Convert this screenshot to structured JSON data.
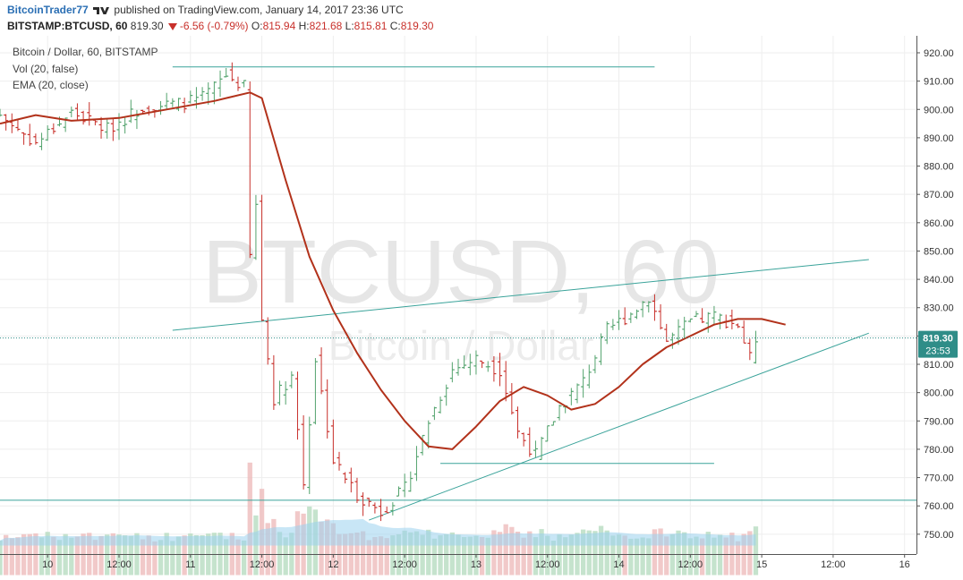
{
  "header": {
    "author": "BitcoinTrader77",
    "published_text": "published on TradingView.com, January 14, 2017 23:36 UTC",
    "symbol": "BITSTAMP:BTCUSD, 60",
    "last": "819.30",
    "change": "-6.56 (-0.79%)",
    "o_label": "O:",
    "o": "815.94",
    "h_label": "H:",
    "h": "821.68",
    "l_label": "L:",
    "l": "815.81",
    "c_label": "C:",
    "c": "819.30"
  },
  "legend": {
    "title": "Bitcoin / Dollar, 60, BITSTAMP",
    "vol": "Vol (20, false)",
    "ema": "EMA (20, close)"
  },
  "watermark": {
    "line1": "BTCUSD, 60",
    "line2": "Bitcoin / Dollar"
  },
  "price_label": {
    "value": "819.30",
    "countdown": "23:53"
  },
  "colors": {
    "up": "#53a36d",
    "down": "#c8302b",
    "ema": "#b2321b",
    "trend": "#3aa39a",
    "vol_up": "#b6dcc0",
    "vol_down": "#eebcbc",
    "vol_ma": "#9bd1ef",
    "price_tag": "#2f8d88",
    "header_blue": "#2b6fb4"
  },
  "chart_data": {
    "type": "candlestick",
    "title": "Bitcoin / Dollar, 60, BITSTAMP",
    "ylim": [
      743,
      926
    ],
    "yticks": [
      750,
      760,
      770,
      780,
      790,
      800,
      810,
      820,
      830,
      840,
      850,
      860,
      870,
      880,
      890,
      900,
      910,
      920
    ],
    "y_axis_side": "right",
    "x_range": [
      "2017-01-09T16:00",
      "2017-01-16T02:00"
    ],
    "x_tick_labels": [
      {
        "t": "2017-01-10T00:00",
        "label": "10"
      },
      {
        "t": "2017-01-10T12:00",
        "label": "12:00"
      },
      {
        "t": "2017-01-11T00:00",
        "label": "11"
      },
      {
        "t": "2017-01-11T12:00",
        "label": "12:00"
      },
      {
        "t": "2017-01-12T00:00",
        "label": "12"
      },
      {
        "t": "2017-01-12T12:00",
        "label": "12:00"
      },
      {
        "t": "2017-01-13T00:00",
        "label": "13"
      },
      {
        "t": "2017-01-13T12:00",
        "label": "12:00"
      },
      {
        "t": "2017-01-14T00:00",
        "label": "14"
      },
      {
        "t": "2017-01-14T12:00",
        "label": "12:00"
      },
      {
        "t": "2017-01-15T00:00",
        "label": "15"
      },
      {
        "t": "2017-01-15T12:00",
        "label": "12:00"
      },
      {
        "t": "2017-01-16T00:00",
        "label": "16"
      }
    ],
    "close_path": [
      [
        "2017-01-09T16:00",
        898
      ],
      [
        "2017-01-09T22:00",
        888
      ],
      [
        "2017-01-10T04:00",
        899
      ],
      [
        "2017-01-10T10:00",
        893
      ],
      [
        "2017-01-10T16:00",
        901
      ],
      [
        "2017-01-10T22:00",
        902
      ],
      [
        "2017-01-11T02:00",
        904
      ],
      [
        "2017-01-11T06:00",
        912
      ],
      [
        "2017-01-11T09:00",
        908
      ],
      [
        "2017-01-11T10:00",
        848
      ],
      [
        "2017-01-11T11:00",
        866
      ],
      [
        "2017-01-11T12:00",
        826
      ],
      [
        "2017-01-11T14:00",
        798
      ],
      [
        "2017-01-11T17:00",
        806
      ],
      [
        "2017-01-11T19:00",
        768
      ],
      [
        "2017-01-11T21:00",
        812
      ],
      [
        "2017-01-12T00:00",
        776
      ],
      [
        "2017-01-12T04:00",
        764
      ],
      [
        "2017-01-12T08:00",
        758
      ],
      [
        "2017-01-12T12:00",
        766
      ],
      [
        "2017-01-12T16:00",
        790
      ],
      [
        "2017-01-12T20:00",
        808
      ],
      [
        "2017-01-13T00:00",
        812
      ],
      [
        "2017-01-13T04:00",
        808
      ],
      [
        "2017-01-13T07:00",
        786
      ],
      [
        "2017-01-13T10:00",
        778
      ],
      [
        "2017-01-13T14:00",
        795
      ],
      [
        "2017-01-13T18:00",
        804
      ],
      [
        "2017-01-13T22:00",
        822
      ],
      [
        "2017-01-14T02:00",
        828
      ],
      [
        "2017-01-14T05:00",
        834
      ],
      [
        "2017-01-14T08:00",
        818
      ],
      [
        "2017-01-14T12:00",
        825
      ],
      [
        "2017-01-14T16:00",
        827
      ],
      [
        "2017-01-14T20:00",
        824
      ],
      [
        "2017-01-14T22:00",
        812
      ],
      [
        "2017-01-14T23:00",
        819.3
      ]
    ],
    "ema20": [
      [
        "2017-01-09T16:00",
        895
      ],
      [
        "2017-01-09T22:00",
        898
      ],
      [
        "2017-01-10T04:00",
        896
      ],
      [
        "2017-01-10T12:00",
        897
      ],
      [
        "2017-01-10T20:00",
        900
      ],
      [
        "2017-01-11T04:00",
        903
      ],
      [
        "2017-01-11T10:00",
        906
      ],
      [
        "2017-01-11T12:00",
        904
      ],
      [
        "2017-01-11T16:00",
        875
      ],
      [
        "2017-01-11T20:00",
        848
      ],
      [
        "2017-01-12T00:00",
        829
      ],
      [
        "2017-01-12T04:00",
        814
      ],
      [
        "2017-01-12T08:00",
        801
      ],
      [
        "2017-01-12T12:00",
        790
      ],
      [
        "2017-01-12T16:00",
        781
      ],
      [
        "2017-01-12T20:00",
        780
      ],
      [
        "2017-01-13T00:00",
        788
      ],
      [
        "2017-01-13T04:00",
        797
      ],
      [
        "2017-01-13T08:00",
        802
      ],
      [
        "2017-01-13T12:00",
        799
      ],
      [
        "2017-01-13T16:00",
        794
      ],
      [
        "2017-01-13T20:00",
        796
      ],
      [
        "2017-01-14T00:00",
        802
      ],
      [
        "2017-01-14T04:00",
        810
      ],
      [
        "2017-01-14T08:00",
        816
      ],
      [
        "2017-01-14T12:00",
        820
      ],
      [
        "2017-01-14T16:00",
        824
      ],
      [
        "2017-01-14T20:00",
        826
      ],
      [
        "2017-01-15T00:00",
        826
      ],
      [
        "2017-01-15T04:00",
        824
      ]
    ],
    "trendlines": [
      {
        "from": [
          "2017-01-10T21:00",
          915
        ],
        "to": [
          "2017-01-14T06:00",
          915
        ]
      },
      {
        "from": [
          "2017-01-10T21:00",
          822
        ],
        "to": [
          "2017-01-15T18:00",
          847
        ]
      },
      {
        "from": [
          "2017-01-12T06:00",
          755
        ],
        "to": [
          "2017-01-15T18:00",
          821
        ]
      },
      {
        "from": [
          "2017-01-12T18:00",
          775
        ],
        "to": [
          "2017-01-14T16:00",
          775
        ]
      },
      {
        "from": [
          "2017-01-09T16:00",
          762
        ],
        "to": [
          "2017-01-16T00:00",
          762
        ],
        "full": true
      }
    ],
    "last_price": 819.3,
    "volume_base": 746,
    "volume_max_price": 788
  }
}
